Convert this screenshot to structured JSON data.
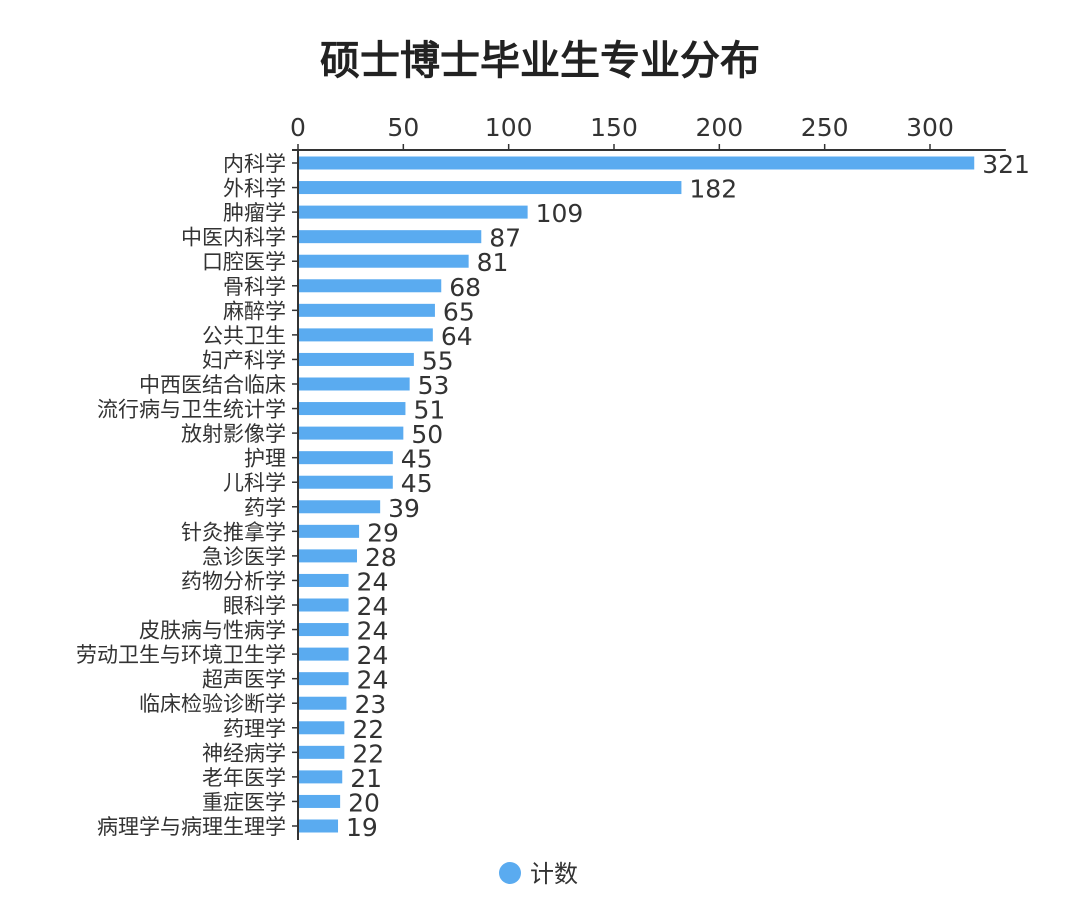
{
  "chart_data": {
    "type": "bar",
    "orientation": "horizontal",
    "title": "硕士博士毕业生专业分布",
    "xlabel": "",
    "ylabel": "",
    "xlim": [
      0,
      336
    ],
    "xticks": [
      0,
      50,
      100,
      150,
      200,
      250,
      300
    ],
    "xaxis_position": "top",
    "grid": false,
    "legend": {
      "position": "bottom-center",
      "entries": [
        "计数"
      ]
    },
    "colors": {
      "bar": "#5aabf0",
      "text": "#333333",
      "axis": "#333333"
    },
    "categories": [
      "内科学",
      "外科学",
      "肿瘤学",
      "中医内科学",
      "口腔医学",
      "骨科学",
      "麻醉学",
      "公共卫生",
      "妇产科学",
      "中西医结合临床",
      "流行病与卫生统计学",
      "放射影像学",
      "护理",
      "儿科学",
      "药学",
      "针灸推拿学",
      "急诊医学",
      "药物分析学",
      "眼科学",
      "皮肤病与性病学",
      "劳动卫生与环境卫生学",
      "超声医学",
      "临床检验诊断学",
      "药理学",
      "神经病学",
      "老年医学",
      "重症医学",
      "病理学与病理生理学"
    ],
    "series": [
      {
        "name": "计数",
        "values": [
          321,
          182,
          109,
          87,
          81,
          68,
          65,
          64,
          55,
          53,
          51,
          50,
          45,
          45,
          39,
          29,
          28,
          24,
          24,
          24,
          24,
          24,
          23,
          22,
          22,
          21,
          20,
          19
        ]
      }
    ]
  }
}
